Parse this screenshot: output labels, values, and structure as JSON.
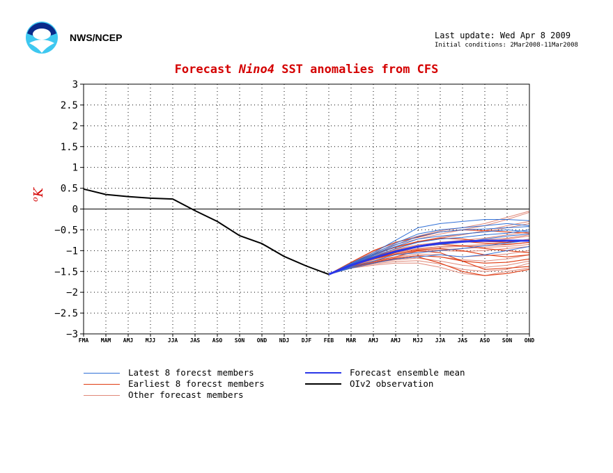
{
  "header": {
    "org": "NWS/NCEP",
    "last_update": "Last update: Wed Apr 8 2009",
    "initial_conditions": "Initial conditions: 2Mar2008-11Mar2008"
  },
  "title": {
    "prefix": "Forecast",
    "index": "Nino4",
    "suffix": "SST anomalies from CFS"
  },
  "colors": {
    "title": "#d40000",
    "latest": "#2f6fd6",
    "earliest": "#e03a10",
    "other": "#e08878",
    "mean": "#2a36e8",
    "observation": "#000000"
  },
  "chart_data": {
    "type": "line",
    "title": "Forecast Nino4 SST anomalies from CFS",
    "ylabel": "°K",
    "xlabel": "",
    "categories": [
      "FMA",
      "MAM",
      "AMJ",
      "MJJ",
      "JJA",
      "JAS",
      "ASO",
      "SON",
      "OND",
      "NDJ",
      "DJF",
      "FEB",
      "MAR",
      "AMJ",
      "AMJ",
      "MJJ",
      "JJA",
      "JAS",
      "ASO",
      "SON",
      "OND"
    ],
    "x_tick_labels": [
      "FMA",
      "MAM",
      "AMJ",
      "MJJ",
      "JJA",
      "JAS",
      "ASO",
      "SON",
      "OND",
      "NDJ",
      "DJF",
      "FEB",
      "MAR",
      "AMJ",
      "AMJ",
      "MJJ",
      "JJA",
      "JAS",
      "ASO",
      "SON",
      "OND"
    ],
    "ylim": [
      -3,
      3
    ],
    "y_ticks": [
      "3",
      "2.5",
      "2",
      "1.5",
      "1",
      "0.5",
      "0",
      "-0.5",
      "-1",
      "-1.5",
      "-2",
      "-2.5",
      "-3"
    ],
    "grid": true,
    "legend_placement": "bottom",
    "observation": {
      "name": "OIv2 observation",
      "x_start": 0,
      "values": [
        0.48,
        0.35,
        0.3,
        0.26,
        0.24,
        -0.04,
        -0.3,
        -0.64,
        -0.83,
        -1.14,
        -1.37,
        -1.57
      ]
    },
    "ensemble_mean": {
      "name": "Forecast ensemble mean",
      "x_start": 11,
      "values": [
        -1.57,
        -1.35,
        -1.18,
        -1.02,
        -0.9,
        -0.82,
        -0.78,
        -0.76,
        -0.76,
        -0.76
      ]
    },
    "latest_members": {
      "name": "Latest 8 forecst members",
      "x_start": 11,
      "series": [
        [
          -1.57,
          -1.3,
          -1.05,
          -0.75,
          -0.45,
          -0.35,
          -0.3,
          -0.25,
          -0.25,
          -0.28
        ],
        [
          -1.57,
          -1.32,
          -1.08,
          -0.82,
          -0.6,
          -0.5,
          -0.45,
          -0.4,
          -0.35,
          -0.4
        ],
        [
          -1.57,
          -1.35,
          -1.12,
          -0.9,
          -0.72,
          -0.65,
          -0.6,
          -0.55,
          -0.5,
          -0.55
        ],
        [
          -1.57,
          -1.38,
          -1.18,
          -1.0,
          -0.9,
          -0.85,
          -0.8,
          -0.72,
          -0.65,
          -0.6
        ],
        [
          -1.57,
          -1.4,
          -1.25,
          -1.1,
          -1.05,
          -1.0,
          -0.95,
          -0.88,
          -0.82,
          -0.75
        ],
        [
          -1.57,
          -1.42,
          -1.3,
          -1.2,
          -1.15,
          -1.1,
          -1.15,
          -1.1,
          -1.0,
          -0.9
        ],
        [
          -1.57,
          -1.33,
          -1.1,
          -0.86,
          -0.66,
          -0.55,
          -0.5,
          -0.48,
          -0.45,
          -0.42
        ],
        [
          -1.57,
          -1.36,
          -1.15,
          -0.95,
          -0.8,
          -0.72,
          -0.68,
          -0.62,
          -0.58,
          -0.5
        ]
      ]
    },
    "earliest_members": {
      "name": "Earliest 8 forecst members",
      "x_start": 11,
      "series": [
        [
          -1.57,
          -1.28,
          -1.0,
          -0.8,
          -0.68,
          -0.55,
          -0.5,
          -0.52,
          -0.55,
          -0.58
        ],
        [
          -1.57,
          -1.35,
          -1.2,
          -1.05,
          -0.9,
          -0.8,
          -0.78,
          -0.82,
          -0.85,
          -0.8
        ],
        [
          -1.57,
          -1.4,
          -1.28,
          -1.18,
          -1.12,
          -1.15,
          -1.25,
          -1.3,
          -1.28,
          -1.2
        ],
        [
          -1.57,
          -1.38,
          -1.25,
          -1.15,
          -1.0,
          -1.05,
          -1.25,
          -1.45,
          -1.42,
          -1.38
        ],
        [
          -1.57,
          -1.42,
          -1.3,
          -1.2,
          -1.15,
          -1.3,
          -1.5,
          -1.6,
          -1.55,
          -1.45
        ],
        [
          -1.57,
          -1.32,
          -1.15,
          -1.0,
          -0.9,
          -0.85,
          -0.88,
          -0.95,
          -1.0,
          -1.05
        ],
        [
          -1.57,
          -1.3,
          -1.08,
          -0.92,
          -0.78,
          -0.7,
          -0.72,
          -0.78,
          -0.8,
          -0.75
        ],
        [
          -1.57,
          -1.36,
          -1.2,
          -1.08,
          -0.98,
          -0.95,
          -1.0,
          -1.1,
          -1.15,
          -1.1
        ]
      ]
    },
    "other_members": {
      "name": "Other forecast members",
      "x_start": 11,
      "series": [
        [
          -1.57,
          -1.3,
          -1.05,
          -0.85,
          -0.72,
          -0.6,
          -0.5,
          -0.4,
          -0.25,
          -0.08
        ],
        [
          -1.57,
          -1.32,
          -1.1,
          -0.92,
          -0.8,
          -0.7,
          -0.62,
          -0.52,
          -0.4,
          -0.3
        ],
        [
          -1.57,
          -1.34,
          -1.15,
          -1.0,
          -0.9,
          -0.85,
          -0.8,
          -0.78,
          -0.72,
          -0.65
        ],
        [
          -1.57,
          -1.36,
          -1.2,
          -1.08,
          -1.0,
          -0.98,
          -0.95,
          -0.92,
          -0.9,
          -0.85
        ],
        [
          -1.57,
          -1.38,
          -1.25,
          -1.15,
          -1.08,
          -1.1,
          -1.15,
          -1.12,
          -1.08,
          -1.0
        ],
        [
          -1.57,
          -1.4,
          -1.3,
          -1.22,
          -1.18,
          -1.25,
          -1.35,
          -1.4,
          -1.35,
          -1.25
        ],
        [
          -1.57,
          -1.42,
          -1.35,
          -1.3,
          -1.3,
          -1.4,
          -1.55,
          -1.6,
          -1.5,
          -1.42
        ],
        [
          -1.57,
          -1.31,
          -1.08,
          -0.9,
          -0.78,
          -0.68,
          -0.6,
          -0.55,
          -0.45,
          -0.35
        ],
        [
          -1.57,
          -1.33,
          -1.12,
          -0.96,
          -0.86,
          -0.8,
          -0.75,
          -0.7,
          -0.62,
          -0.55
        ],
        [
          -1.57,
          -1.35,
          -1.18,
          -1.04,
          -0.95,
          -0.9,
          -0.88,
          -0.85,
          -0.8,
          -0.72
        ],
        [
          -1.57,
          -1.37,
          -1.22,
          -1.1,
          -1.02,
          -1.0,
          -1.02,
          -1.0,
          -0.95,
          -0.9
        ],
        [
          -1.57,
          -1.39,
          -1.27,
          -1.18,
          -1.12,
          -1.15,
          -1.22,
          -1.25,
          -1.2,
          -1.1
        ],
        [
          -1.57,
          -1.29,
          -1.02,
          -0.8,
          -0.65,
          -0.52,
          -0.45,
          -0.35,
          -0.2,
          -0.05
        ],
        [
          -1.57,
          -1.34,
          -1.14,
          -0.98,
          -0.88,
          -0.82,
          -0.78,
          -0.74,
          -0.7,
          -0.62
        ],
        [
          -1.57,
          -1.36,
          -1.19,
          -1.05,
          -0.96,
          -0.92,
          -0.9,
          -0.88,
          -0.86,
          -0.8
        ],
        [
          -1.57,
          -1.41,
          -1.32,
          -1.26,
          -1.24,
          -1.32,
          -1.45,
          -1.5,
          -1.45,
          -1.3
        ]
      ]
    }
  },
  "legend": {
    "latest": "Latest 8 forecst members",
    "earliest": "Earliest 8 forecst members",
    "other": "Other forecast members",
    "mean": "Forecast ensemble mean",
    "observation": "OIv2 observation"
  }
}
